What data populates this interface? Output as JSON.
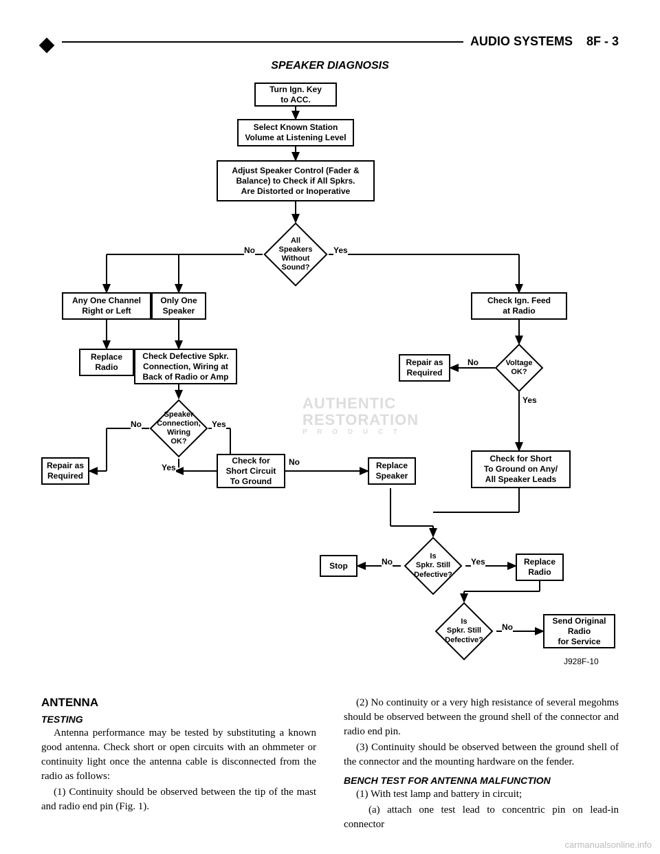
{
  "header": {
    "section": "AUDIO SYSTEMS",
    "page": "8F - 3"
  },
  "diagram": {
    "title": "SPEAKER DIAGNOSIS",
    "figure_label": "J928F-10",
    "watermark": {
      "line1": "AUTHENTIC",
      "line2": "RESTORATION",
      "sub": "P R O D U C T"
    },
    "nodes": {
      "n1": {
        "text": "Turn Ign. Key\nto ACC."
      },
      "n2": {
        "text": "Select Known Station\nVolume at Listening Level"
      },
      "n3": {
        "text": "Adjust Speaker Control (Fader &\nBalance) to Check if All Spkrs.\nAre Distorted or Inoperative"
      },
      "d1": {
        "text": "All\nSpeakers\nWithout\nSound?"
      },
      "n4": {
        "text": "Any One Channel\nRight or Left"
      },
      "n5": {
        "text": "Only One\nSpeaker"
      },
      "n6": {
        "text": "Replace\nRadio"
      },
      "n7": {
        "text": "Check Defective Spkr.\nConnection, Wiring at\nBack of Radio or Amp"
      },
      "d2": {
        "text": "Speaker\nConnection,\nWiring\nOK?"
      },
      "n8": {
        "text": "Repair as\nRequired"
      },
      "n9": {
        "text": "Check for\nShort Circuit\nTo Ground"
      },
      "n10": {
        "text": "Replace\nSpeaker"
      },
      "n11": {
        "text": "Check Ign. Feed\nat Radio"
      },
      "d3": {
        "text": "Voltage\nOK?"
      },
      "n12": {
        "text": "Repair as\nRequired"
      },
      "n13": {
        "text": "Check for Short\nTo Ground on Any/\nAll Speaker Leads"
      },
      "d4": {
        "text": "Is\nSpkr. Still\nDefective?"
      },
      "n14": {
        "text": "Stop"
      },
      "n15": {
        "text": "Replace\nRadio"
      },
      "d5": {
        "text": "Is\nSpkr. Still\nDefective?"
      },
      "n16": {
        "text": "Send Original\nRadio\nfor Service"
      }
    },
    "edges": {
      "yes": "Yes",
      "no": "No"
    }
  },
  "body": {
    "col1": {
      "h1": "ANTENNA",
      "h2": "TESTING",
      "p1": "Antenna performance may be tested by substituting a known good antenna. Check short or open circuits with an ohmmeter or continuity light once the antenna cable is disconnected from the radio as follows:",
      "p2": "(1) Continuity should be observed between the tip of the mast and radio end pin (Fig. 1)."
    },
    "col2": {
      "p1": "(2) No continuity or a very high resistance of several megohms should be observed between the ground shell of the connector and radio end pin.",
      "p2": "(3) Continuity should be observed between the ground shell of the connector and the mounting hardware on the fender.",
      "h2": "BENCH TEST FOR ANTENNA MALFUNCTION",
      "p3": "(1) With test lamp and battery in circuit;",
      "p4": "(a) attach one test lead to concentric pin on lead-in connector"
    }
  },
  "footer_watermark": "carmanualsonline.info"
}
